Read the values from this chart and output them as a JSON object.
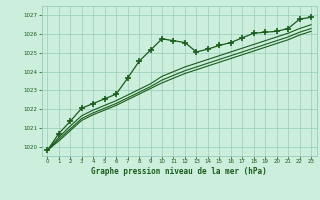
{
  "title": "Graphe pression niveau de la mer (hPa)",
  "background_color": "#cceedd",
  "grid_color": "#99ccbb",
  "line_color": "#1a5c1a",
  "xlim": [
    -0.5,
    23.5
  ],
  "ylim": [
    1019.5,
    1027.5
  ],
  "yticks": [
    1020,
    1021,
    1022,
    1023,
    1024,
    1025,
    1026,
    1027
  ],
  "xticks": [
    0,
    1,
    2,
    3,
    4,
    5,
    6,
    7,
    8,
    9,
    10,
    11,
    12,
    13,
    14,
    15,
    16,
    17,
    18,
    19,
    20,
    21,
    22,
    23
  ],
  "series_marked_x": [
    0,
    1,
    2,
    3,
    4,
    5,
    6,
    7,
    8,
    9,
    10,
    11,
    12,
    13,
    14,
    15,
    16,
    17,
    18,
    19,
    20,
    21,
    22,
    23
  ],
  "series_marked_y": [
    1019.8,
    1020.7,
    1021.35,
    1022.05,
    1022.3,
    1022.55,
    1022.8,
    1023.65,
    1024.55,
    1025.15,
    1025.75,
    1025.65,
    1025.55,
    1025.05,
    1025.2,
    1025.4,
    1025.55,
    1025.8,
    1026.05,
    1026.1,
    1026.15,
    1026.3,
    1026.8,
    1026.9
  ],
  "series_smooth1_x": [
    0,
    1,
    2,
    3,
    4,
    5,
    6,
    7,
    8,
    9,
    10,
    11,
    12,
    13,
    14,
    15,
    16,
    17,
    18,
    19,
    20,
    21,
    22,
    23
  ],
  "series_smooth1_y": [
    1019.8,
    1020.3,
    1020.85,
    1021.4,
    1021.7,
    1021.95,
    1022.2,
    1022.5,
    1022.8,
    1023.1,
    1023.4,
    1023.65,
    1023.9,
    1024.1,
    1024.3,
    1024.5,
    1024.7,
    1024.9,
    1025.1,
    1025.3,
    1025.5,
    1025.7,
    1025.95,
    1026.15
  ],
  "series_smooth2_x": [
    0,
    1,
    2,
    3,
    4,
    5,
    6,
    7,
    8,
    9,
    10,
    11,
    12,
    13,
    14,
    15,
    16,
    17,
    18,
    19,
    20,
    21,
    22,
    23
  ],
  "series_smooth2_y": [
    1019.8,
    1020.4,
    1020.95,
    1021.5,
    1021.8,
    1022.05,
    1022.3,
    1022.6,
    1022.9,
    1023.2,
    1023.55,
    1023.8,
    1024.05,
    1024.25,
    1024.45,
    1024.65,
    1024.85,
    1025.05,
    1025.25,
    1025.45,
    1025.65,
    1025.85,
    1026.1,
    1026.3
  ],
  "series_smooth3_x": [
    0,
    1,
    2,
    3,
    4,
    5,
    6,
    7,
    8,
    9,
    10,
    11,
    12,
    13,
    14,
    15,
    16,
    17,
    18,
    19,
    20,
    21,
    22,
    23
  ],
  "series_smooth3_y": [
    1019.8,
    1020.5,
    1021.1,
    1021.65,
    1021.95,
    1022.2,
    1022.45,
    1022.75,
    1023.05,
    1023.35,
    1023.75,
    1024.0,
    1024.25,
    1024.45,
    1024.65,
    1024.85,
    1025.05,
    1025.25,
    1025.45,
    1025.65,
    1025.85,
    1026.05,
    1026.3,
    1026.5
  ]
}
